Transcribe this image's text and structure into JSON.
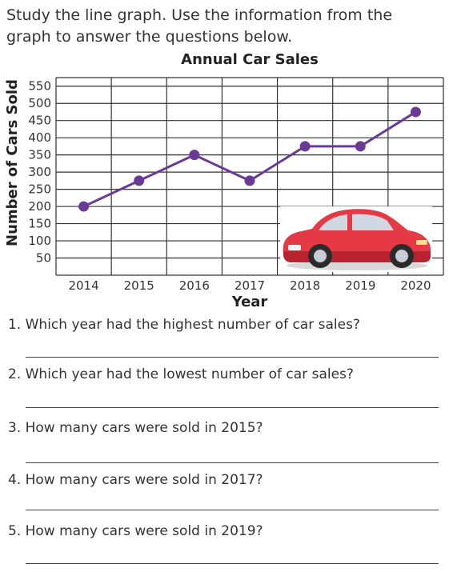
{
  "instructions": "Study the line graph. Use the information from the graph to answer the questions below.",
  "chart_data": {
    "type": "line",
    "title": "Annual Car Sales",
    "xlabel": "Year",
    "ylabel": "Number of Cars Sold",
    "categories": [
      "2014",
      "2015",
      "2016",
      "2017",
      "2018",
      "2019",
      "2020"
    ],
    "values": [
      200,
      275,
      350,
      275,
      375,
      375,
      475
    ],
    "yticks": [
      "50",
      "100",
      "150",
      "200",
      "250",
      "300",
      "350",
      "400",
      "450",
      "500",
      "550"
    ],
    "ylim": [
      0,
      575
    ],
    "grid": true,
    "line_color": "#6a3a96"
  },
  "illustration": {
    "icon": "red-car-icon",
    "color": "#e63946"
  },
  "questions": [
    {
      "text": "1. Which year had the highest number of car sales?"
    },
    {
      "text": "2. Which year had the lowest number of car sales?"
    },
    {
      "text": "3. How many cars were sold in 2015?"
    },
    {
      "text": "4. How many cars were sold in 2017?"
    },
    {
      "text": "5. How many cars were sold in 2019?"
    }
  ]
}
